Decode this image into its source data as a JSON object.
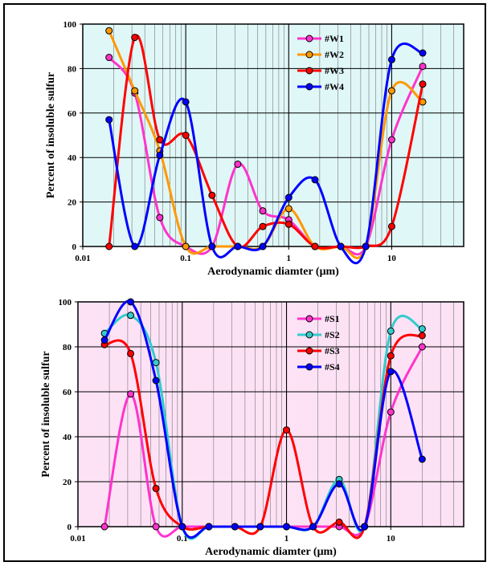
{
  "chart_data": [
    {
      "type": "line",
      "xscale": "log",
      "xlim": [
        0.01,
        50
      ],
      "ylim": [
        0,
        100
      ],
      "xticks": [
        "0.01",
        "0.1",
        "1",
        "10"
      ],
      "yticks": [
        "0",
        "20",
        "40",
        "60",
        "80",
        "100"
      ],
      "xlabel": "Aerodynamic diamter (μm)",
      "ylabel": "Percent of insoluble sulfur",
      "background": "#e0f7f7",
      "grid": true,
      "legend_position": "top-center",
      "x": [
        0.018,
        0.032,
        0.056,
        0.1,
        0.18,
        0.32,
        0.56,
        1.0,
        1.8,
        3.2,
        5.6,
        10,
        20
      ],
      "series": [
        {
          "name": "#W1",
          "color": "#ff33cc",
          "values": [
            85,
            69,
            13,
            0,
            0,
            37,
            16,
            12,
            0,
            0,
            0,
            48,
            81
          ]
        },
        {
          "name": "#W2",
          "color": "#ff9900",
          "values": [
            97,
            70,
            43,
            0,
            0,
            0,
            0,
            17,
            0,
            0,
            0,
            70,
            65
          ]
        },
        {
          "name": "#W3",
          "color": "#ff0000",
          "values": [
            0,
            94,
            48,
            50,
            23,
            0,
            9,
            10,
            0,
            0,
            0,
            9,
            73
          ]
        },
        {
          "name": "#W4",
          "color": "#0000ff",
          "values": [
            57,
            0,
            41,
            65,
            0,
            0,
            0,
            22,
            30,
            0,
            0,
            84,
            87
          ]
        }
      ]
    },
    {
      "type": "line",
      "xscale": "log",
      "xlim": [
        0.01,
        50
      ],
      "ylim": [
        0,
        100
      ],
      "xticks": [
        "0.01",
        "0.1",
        "1",
        "10"
      ],
      "yticks": [
        "0",
        "20",
        "40",
        "60",
        "80",
        "100"
      ],
      "xlabel": "Aerodynamic diamter (μm)",
      "ylabel": "Percent of insoluble sulfur",
      "background": "#fde2f6",
      "grid": true,
      "legend_position": "top-center",
      "x": [
        0.018,
        0.032,
        0.056,
        0.1,
        0.18,
        0.32,
        0.56,
        1.0,
        1.8,
        3.2,
        5.6,
        10,
        20
      ],
      "series": [
        {
          "name": "#S1",
          "color": "#ff33cc",
          "values": [
            0,
            59,
            0,
            0,
            0,
            0,
            0,
            0,
            0,
            0,
            0,
            51,
            80
          ]
        },
        {
          "name": "#S2",
          "color": "#33cccc",
          "values": [
            86,
            94,
            73,
            0,
            0,
            0,
            0,
            0,
            0,
            21,
            0,
            87,
            88
          ]
        },
        {
          "name": "#S3",
          "color": "#ff0000",
          "values": [
            81,
            77,
            17,
            0,
            0,
            0,
            0,
            43,
            0,
            2,
            0,
            76,
            85
          ]
        },
        {
          "name": "#S4",
          "color": "#0000ff",
          "values": [
            83,
            100,
            65,
            0,
            0,
            0,
            0,
            0,
            0,
            19,
            0,
            69,
            30
          ]
        }
      ]
    }
  ]
}
